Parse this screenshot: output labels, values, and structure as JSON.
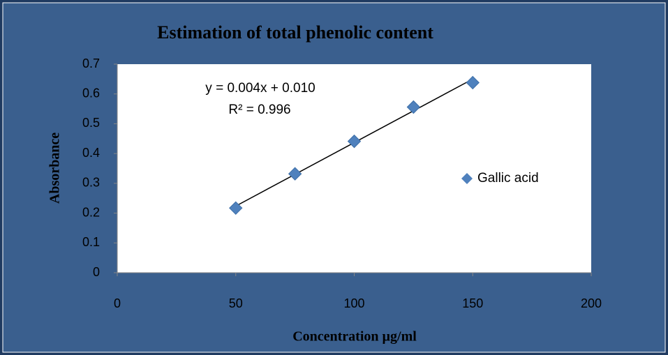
{
  "chart_data": {
    "type": "scatter",
    "title": "Estimation of total phenolic content",
    "xlabel": "Concentration µg/ml",
    "ylabel": "Absorbance",
    "series": [
      {
        "name": "Gallic acid",
        "color": "#4f81bd",
        "x": [
          50,
          75,
          100,
          125,
          150
        ],
        "values": [
          0.217,
          0.332,
          0.441,
          0.556,
          0.638
        ]
      }
    ],
    "annotations": [
      "y = 0.004x + 0.010",
      "R² = 0.996"
    ],
    "trendline": true,
    "xlim": [
      0,
      200
    ],
    "xticks": [
      0,
      50,
      100,
      150,
      200
    ],
    "ylim": [
      0,
      0.7
    ],
    "yticks": [
      0,
      0.1,
      0.2,
      0.3,
      0.4,
      0.5,
      0.6,
      0.7
    ],
    "grid": false,
    "legend": "right"
  }
}
